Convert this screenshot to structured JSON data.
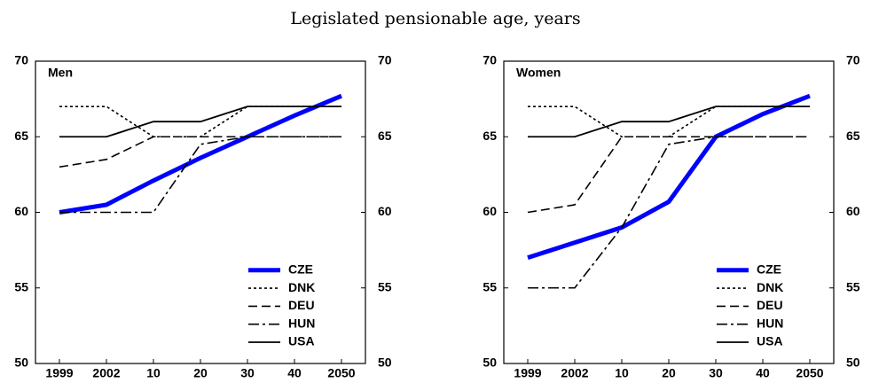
{
  "title": "Legislated pensionable age, years",
  "chart_data": [
    {
      "type": "line",
      "label": "Men",
      "categories": [
        "1999",
        "2002",
        "10",
        "20",
        "30",
        "40",
        "2050"
      ],
      "ylim": [
        50,
        70
      ],
      "yticks": [
        50,
        55,
        60,
        65,
        70
      ],
      "y2lim": [
        50,
        70
      ],
      "y2ticks": [
        50,
        55,
        60,
        65,
        70
      ],
      "legend": "lower right",
      "series": [
        {
          "name": "CZE",
          "color": "#0000ff",
          "line_style": "thick",
          "values": [
            60,
            60.5,
            62.1,
            63.6,
            65,
            66.4,
            67.7
          ]
        },
        {
          "name": "DNK",
          "color": "#000000",
          "line_style": "dotted",
          "values": [
            67,
            67,
            65,
            65,
            67,
            67,
            67
          ]
        },
        {
          "name": "DEU",
          "color": "#000000",
          "line_style": "dashed",
          "values": [
            63,
            63.5,
            65,
            65,
            65,
            65,
            65
          ]
        },
        {
          "name": "HUN",
          "color": "#000000",
          "line_style": "dashdot",
          "values": [
            60,
            60,
            60,
            64.5,
            65,
            65,
            65
          ]
        },
        {
          "name": "USA",
          "color": "#000000",
          "line_style": "solid",
          "values": [
            65,
            65,
            66,
            66,
            67,
            67,
            67
          ]
        }
      ]
    },
    {
      "type": "line",
      "label": "Women",
      "categories": [
        "1999",
        "2002",
        "10",
        "20",
        "30",
        "40",
        "2050"
      ],
      "ylim": [
        50,
        70
      ],
      "yticks": [
        50,
        55,
        60,
        65,
        70
      ],
      "y2lim": [
        50,
        70
      ],
      "y2ticks": [
        50,
        55,
        60,
        65,
        70
      ],
      "legend": "lower right",
      "series": [
        {
          "name": "CZE",
          "color": "#0000ff",
          "line_style": "thick",
          "values": [
            57,
            58,
            59,
            60.7,
            65,
            66.5,
            67.7
          ]
        },
        {
          "name": "DNK",
          "color": "#000000",
          "line_style": "dotted",
          "values": [
            67,
            67,
            65,
            65,
            67,
            67,
            67
          ]
        },
        {
          "name": "DEU",
          "color": "#000000",
          "line_style": "dashed",
          "values": [
            60,
            60.5,
            65,
            65,
            65,
            65,
            65
          ]
        },
        {
          "name": "HUN",
          "color": "#000000",
          "line_style": "dashdot",
          "values": [
            55,
            55,
            59,
            64.5,
            65,
            65,
            65
          ]
        },
        {
          "name": "USA",
          "color": "#000000",
          "line_style": "solid",
          "values": [
            65,
            65,
            66,
            66,
            67,
            67,
            67
          ]
        }
      ]
    }
  ]
}
